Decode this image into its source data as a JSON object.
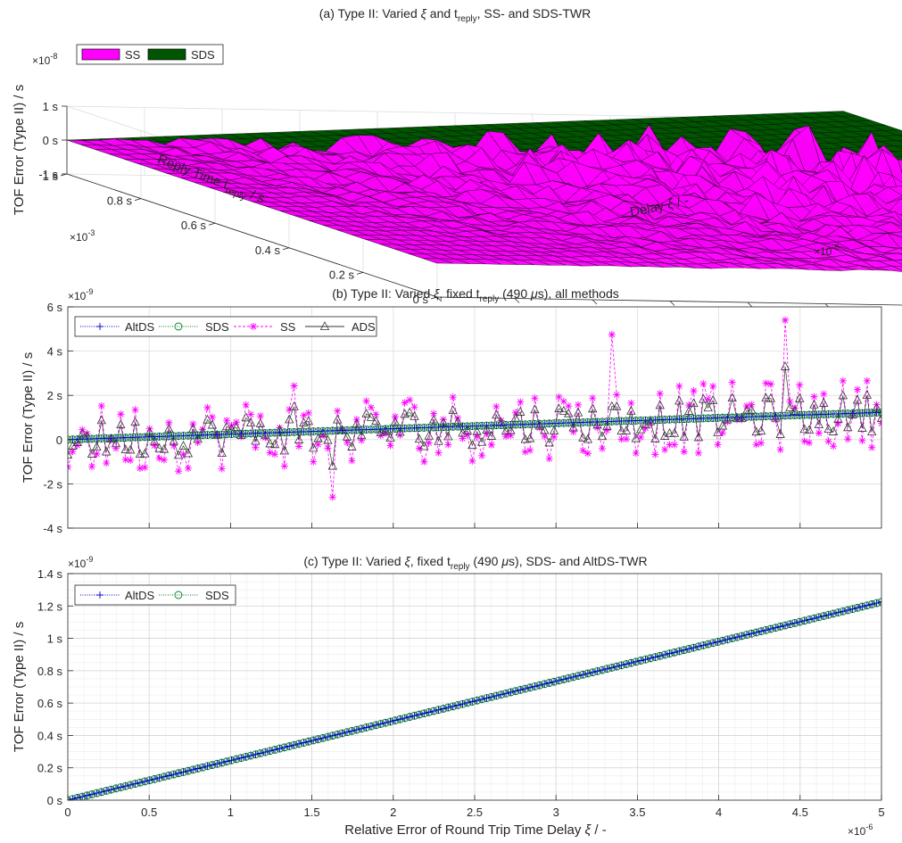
{
  "colors": {
    "ss": "#ff00ff",
    "sds": "#007f1f",
    "sds_surface": "#005500",
    "altds": "#0000cc",
    "ads": "#333333",
    "axis": "#262626",
    "grid": "#dcdcdc"
  },
  "chart_data": [
    {
      "id": "a",
      "type": "surface",
      "title_parts": [
        "(a) Type II: Varied ",
        "ξ",
        " and t",
        "reply",
        ", SS- and SDS-TWR"
      ],
      "legend": [
        "SS",
        "SDS"
      ],
      "legend_position": "top-left",
      "zlabel": "TOF Error (Type II) / s",
      "ylabel_parts": [
        "Reply Time t",
        "reply",
        " / s"
      ],
      "xlabel_parts": [
        "Delay ",
        "ξ",
        " / -"
      ],
      "z_exponent": "×10",
      "z_exponent_power": "-8",
      "y_exponent": "×10",
      "y_exponent_power": "-3",
      "x_exponent": "×10",
      "x_exponent_power": "-6",
      "zticks": [
        "1 s",
        "0 s",
        "-1 s"
      ],
      "yticks": [
        "1 s",
        "0.8 s",
        "0.6 s",
        "0.4 s",
        "0.2 s",
        "0 s"
      ],
      "xticks": [
        "0",
        "0.5",
        "1",
        "1.5",
        "2",
        "2.5",
        "3",
        "3.5",
        "4",
        "4.5",
        "5"
      ],
      "xlim": [
        0,
        5e-06
      ],
      "ylim": [
        0,
        0.001
      ],
      "zlim": [
        -1e-08,
        1e-08
      ],
      "grid": true
    },
    {
      "id": "b",
      "type": "line",
      "title_parts": [
        "(b) Type II: Varied ",
        "ξ",
        ", fixed t",
        "reply",
        " (490 ",
        "μ",
        "s), all methods"
      ],
      "ylabel": "TOF Error (Type II) / s",
      "y_exponent": "×10",
      "y_exponent_power": "-9",
      "yticks": [
        "6 s",
        "4 s",
        "2 s",
        "0",
        "-2 s",
        "-4 s"
      ],
      "ylim": [
        -4e-09,
        6e-09
      ],
      "xlim": [
        0,
        5e-06
      ],
      "legend": [
        "AltDS",
        "SDS",
        "SS",
        "ADS"
      ],
      "legend_position": "top-left",
      "grid": true,
      "series": [
        {
          "name": "AltDS",
          "marker": "+",
          "style": "dotted",
          "x_range": [
            0,
            5e-06
          ],
          "y_range": [
            0,
            1.23e-09
          ]
        },
        {
          "name": "SDS",
          "marker": "o",
          "style": "dotted",
          "x_range": [
            0,
            5e-06
          ],
          "y_range": [
            0,
            1.23e-09
          ]
        },
        {
          "name": "SS",
          "marker": "*",
          "style": "dashed",
          "x_range": [
            0,
            5e-06
          ],
          "y_range": [
            -2.6e-09,
            5.4e-09
          ]
        },
        {
          "name": "ADS",
          "marker": "^",
          "style": "solid",
          "x_range": [
            0,
            5e-06
          ],
          "y_range": [
            -1.4e-09,
            3.3e-09
          ]
        }
      ]
    },
    {
      "id": "c",
      "type": "line",
      "title_parts": [
        "(c) Type II: Varied ",
        "ξ",
        ",  fixed t",
        "reply",
        " (490 ",
        "μ",
        "s), SDS- and AltDS-TWR"
      ],
      "xlabel_parts": [
        "Relative Error of Round Trip Time Delay ",
        "ξ",
        " / -"
      ],
      "ylabel": "TOF Error (Type II) / s",
      "y_exponent": "×10",
      "y_exponent_power": "-9",
      "x_exponent": "×10",
      "x_exponent_power": "-6",
      "yticks": [
        "1.4 s",
        "1.2 s",
        "1 s",
        "0.8 s",
        "0.6 s",
        "0.4 s",
        "0.2 s",
        "0 s"
      ],
      "xticks": [
        "0",
        "0.5",
        "1",
        "1.5",
        "2",
        "2.5",
        "3",
        "3.5",
        "4",
        "4.5",
        "5"
      ],
      "ylim": [
        0,
        1.4e-09
      ],
      "xlim": [
        0,
        5e-06
      ],
      "legend": [
        "AltDS",
        "SDS"
      ],
      "legend_position": "top-left",
      "grid": "major and minor",
      "series": [
        {
          "name": "AltDS",
          "marker": "+",
          "style": "dotted",
          "x": [
            0,
            5e-06
          ],
          "y": [
            0,
            1.225e-09
          ]
        },
        {
          "name": "SDS",
          "marker": "o",
          "style": "dotted",
          "x": [
            0,
            5e-06
          ],
          "y": [
            0,
            1.225e-09
          ]
        }
      ]
    }
  ]
}
